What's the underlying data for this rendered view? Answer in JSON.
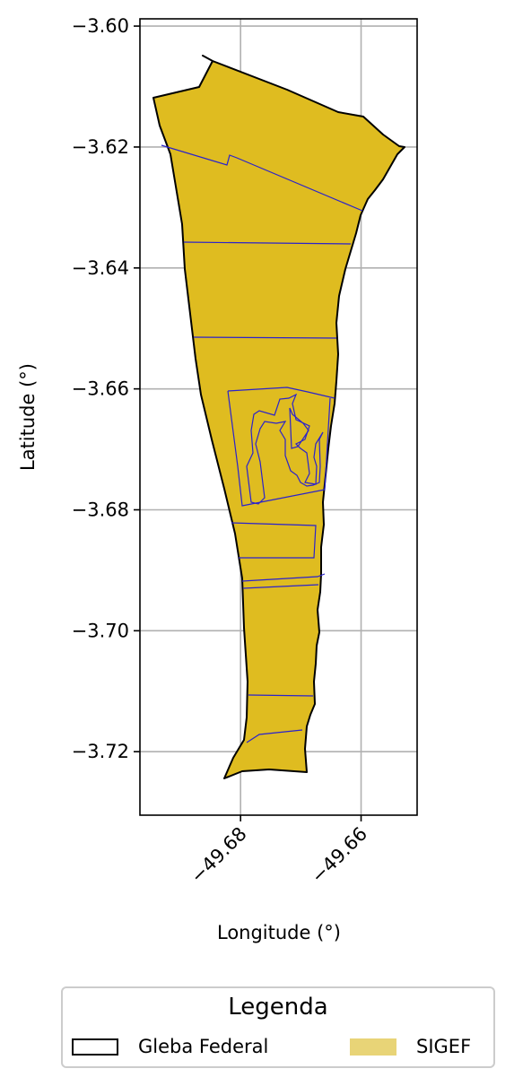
{
  "map": {
    "xlabel": "Longitude (°)",
    "ylabel": "Latitude (°)",
    "xlim": [
      -49.6967,
      -49.6507
    ],
    "ylim": [
      -3.7305,
      -3.5988
    ],
    "xticks": [
      {
        "value": -49.68,
        "label": "−49.68"
      },
      {
        "value": -49.66,
        "label": "−49.66"
      }
    ],
    "yticks": [
      {
        "value": -3.6,
        "label": "−3.60"
      },
      {
        "value": -3.62,
        "label": "−3.62"
      },
      {
        "value": -3.64,
        "label": "−3.64"
      },
      {
        "value": -3.66,
        "label": "−3.66"
      },
      {
        "value": -3.68,
        "label": "−3.68"
      },
      {
        "value": -3.7,
        "label": "−3.70"
      },
      {
        "value": -3.72,
        "label": "−3.72"
      }
    ],
    "grid": true,
    "colors": {
      "fill": "#dfbc20",
      "parcel_line": "#2a22cc",
      "outline": "#000000",
      "grid": "#b0b0b0"
    }
  },
  "legend": {
    "title": "Legenda",
    "items": [
      {
        "label": "Gleba Federal",
        "style": "outline"
      },
      {
        "label": "SIGEF",
        "style": "fill",
        "color": "#e8d477"
      }
    ]
  }
}
